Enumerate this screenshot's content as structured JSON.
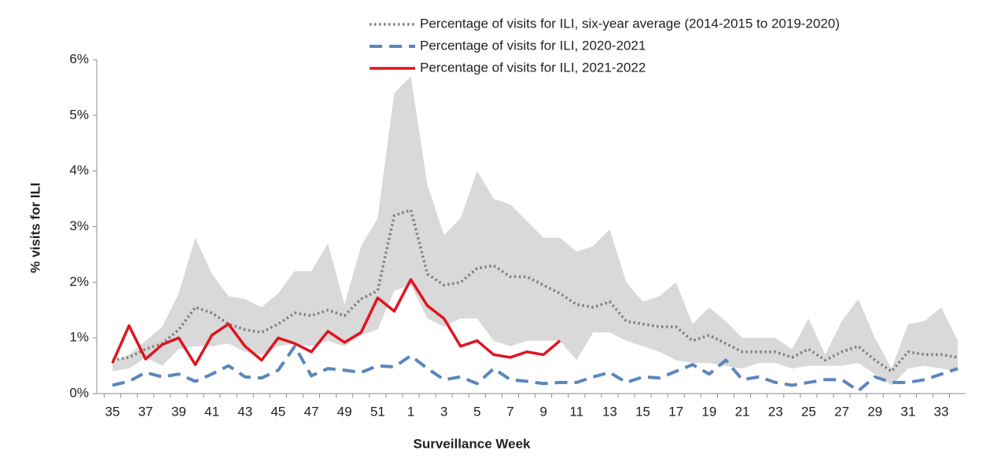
{
  "chart_data": {
    "type": "line",
    "x_label": "Surveillance Week",
    "y_label": "% visits for ILI",
    "categories": [
      "35",
      null,
      "37",
      null,
      "39",
      null,
      "41",
      null,
      "43",
      null,
      "45",
      null,
      "47",
      null,
      "49",
      null,
      "51",
      null,
      "1",
      null,
      "3",
      null,
      "5",
      null,
      "7",
      null,
      "9",
      null,
      "11",
      null,
      "13",
      null,
      "15",
      null,
      "17",
      null,
      "19",
      null,
      "21",
      null,
      "23",
      null,
      "25",
      null,
      "27",
      null,
      "29",
      null,
      "31",
      null,
      "33",
      null
    ],
    "ylim": [
      0,
      6
    ],
    "yticks": [
      {
        "value": 0,
        "label": "0%"
      },
      {
        "value": 1,
        "label": "1%"
      },
      {
        "value": 2,
        "label": "2%"
      },
      {
        "value": 3,
        "label": "3%"
      },
      {
        "value": 4,
        "label": "4%"
      },
      {
        "value": 5,
        "label": "5%"
      },
      {
        "value": 6,
        "label": "6%"
      }
    ],
    "band": {
      "color": "#d9d9d9",
      "lower": [
        0.4,
        0.45,
        0.65,
        0.5,
        0.8,
        0.85,
        0.85,
        0.9,
        0.75,
        0.7,
        0.85,
        0.9,
        0.85,
        0.95,
        0.85,
        1.05,
        1.15,
        1.85,
        1.95,
        1.35,
        1.2,
        1.35,
        1.35,
        0.95,
        0.85,
        0.95,
        0.95,
        0.95,
        0.6,
        1.1,
        1.1,
        0.95,
        0.85,
        0.75,
        0.6,
        0.55,
        0.55,
        0.5,
        0.45,
        0.55,
        0.55,
        0.45,
        0.5,
        0.5,
        0.5,
        0.55,
        0.35,
        0.15,
        0.45,
        0.5,
        0.45,
        0.4
      ],
      "upper": [
        0.55,
        0.7,
        0.95,
        1.2,
        1.8,
        2.8,
        2.15,
        1.75,
        1.7,
        1.55,
        1.8,
        2.2,
        2.2,
        2.7,
        1.6,
        2.65,
        3.15,
        5.4,
        5.7,
        3.75,
        2.85,
        3.15,
        4.0,
        3.5,
        3.4,
        3.1,
        2.8,
        2.8,
        2.55,
        2.65,
        2.95,
        2.0,
        1.65,
        1.75,
        2.0,
        1.25,
        1.55,
        1.3,
        1.0,
        1.0,
        1.0,
        0.8,
        1.35,
        0.7,
        1.3,
        1.7,
        1.0,
        0.45,
        1.25,
        1.3,
        1.55,
        0.95
      ]
    },
    "series": [
      {
        "name": "Percentage of visits for ILI, six-year average (2014-2015 to 2019-2020)",
        "color": "#808080",
        "style": "dotted",
        "values": [
          0.6,
          0.65,
          0.8,
          0.9,
          1.15,
          1.55,
          1.45,
          1.25,
          1.15,
          1.1,
          1.25,
          1.45,
          1.4,
          1.5,
          1.4,
          1.7,
          1.85,
          3.2,
          3.3,
          2.15,
          1.95,
          2.0,
          2.25,
          2.3,
          2.1,
          2.1,
          1.95,
          1.8,
          1.6,
          1.55,
          1.65,
          1.3,
          1.25,
          1.2,
          1.2,
          0.95,
          1.05,
          0.9,
          0.75,
          0.75,
          0.75,
          0.65,
          0.8,
          0.6,
          0.75,
          0.85,
          0.6,
          0.4,
          0.75,
          0.7,
          0.7,
          0.65
        ]
      },
      {
        "name": "Percentage of visits for ILI, 2020-2021",
        "color": "#5b86bd",
        "style": "dashed",
        "values": [
          0.15,
          0.22,
          0.38,
          0.3,
          0.35,
          0.22,
          0.35,
          0.5,
          0.3,
          0.28,
          0.42,
          0.85,
          0.32,
          0.45,
          0.42,
          0.38,
          0.5,
          0.48,
          0.68,
          0.45,
          0.25,
          0.3,
          0.18,
          0.45,
          0.25,
          0.22,
          0.18,
          0.2,
          0.2,
          0.3,
          0.38,
          0.2,
          0.3,
          0.28,
          0.4,
          0.52,
          0.35,
          0.6,
          0.25,
          0.3,
          0.2,
          0.15,
          0.2,
          0.25,
          0.25,
          0.05,
          0.3,
          0.2,
          0.2,
          0.25,
          0.35,
          0.45
        ]
      },
      {
        "name": "Percentage of visits for ILI, 2021-2022",
        "color": "#e0141e",
        "style": "solid",
        "values": [
          0.55,
          1.22,
          0.62,
          0.88,
          1.0,
          0.52,
          1.05,
          1.25,
          0.85,
          0.6,
          1.0,
          0.9,
          0.75,
          1.12,
          0.92,
          1.1,
          1.72,
          1.48,
          2.05,
          1.58,
          1.35,
          0.85,
          0.95,
          0.7,
          0.65,
          0.75,
          0.7,
          0.95,
          null,
          null,
          null,
          null,
          null,
          null,
          null,
          null,
          null,
          null,
          null,
          null,
          null,
          null,
          null,
          null,
          null,
          null,
          null,
          null,
          null,
          null,
          null,
          null
        ]
      }
    ]
  }
}
